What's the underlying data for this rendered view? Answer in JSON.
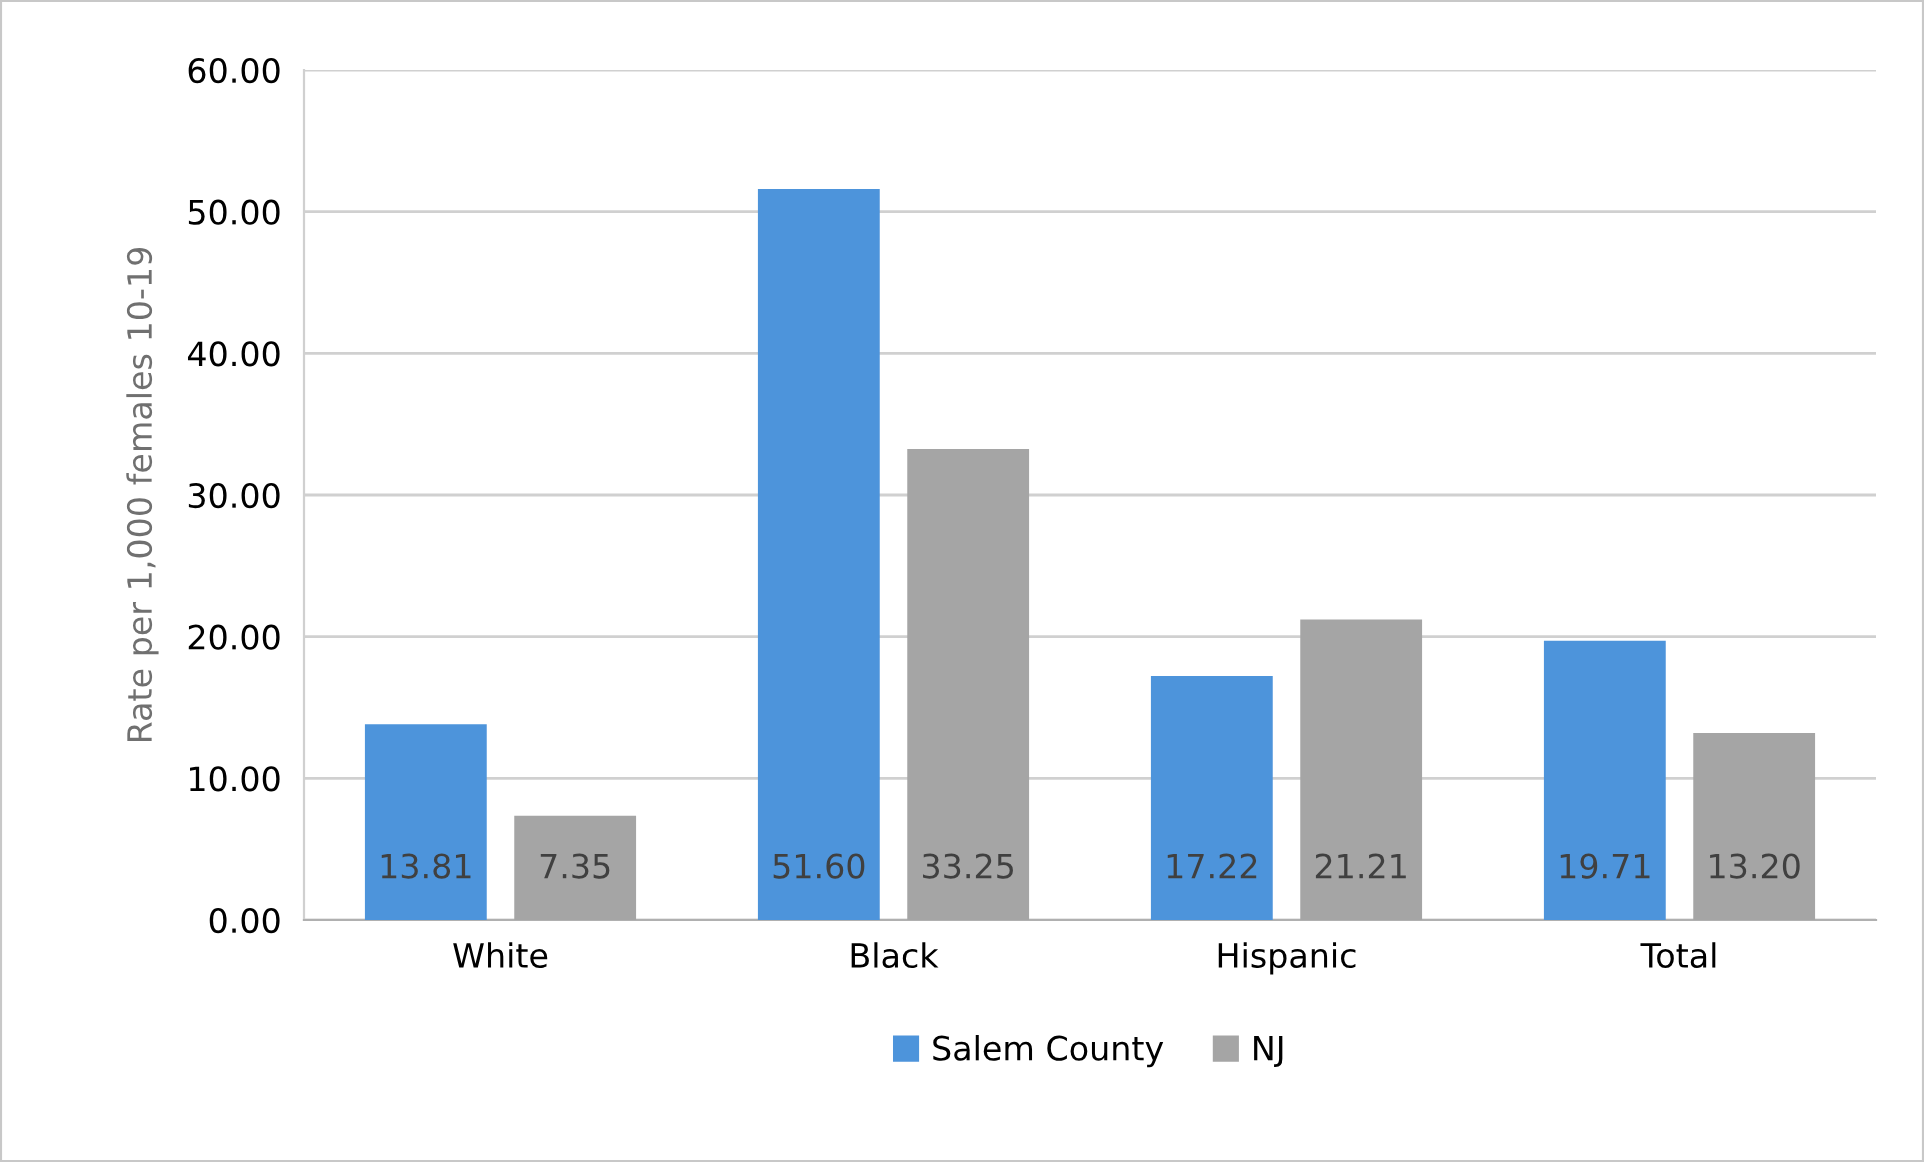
{
  "chart_data": {
    "type": "bar",
    "ylabel": "Rate per 1,000 females 10-19",
    "categories": [
      "White",
      "Black",
      "Hispanic",
      "Total"
    ],
    "series": [
      {
        "name": "Salem County",
        "color": "#4d94db",
        "values": [
          13.81,
          51.6,
          17.22,
          19.71
        ]
      },
      {
        "name": "NJ",
        "color": "#a5a5a5",
        "values": [
          7.35,
          33.25,
          21.21,
          13.2
        ]
      }
    ],
    "ylim": [
      0,
      60
    ],
    "yticks": [
      {
        "value": 0,
        "label": "0.00"
      },
      {
        "value": 10,
        "label": "10.00"
      },
      {
        "value": 20,
        "label": "20.00"
      },
      {
        "value": 30,
        "label": "30.00"
      },
      {
        "value": 40,
        "label": "40.00"
      },
      {
        "value": 50,
        "label": "50.00"
      },
      {
        "value": 60,
        "label": "60.00"
      }
    ],
    "value_labels": [
      [
        "13.81",
        "51.60",
        "17.22",
        "19.71"
      ],
      [
        "7.35",
        "33.25",
        "21.21",
        "13.20"
      ]
    ],
    "grid": "y",
    "legend": "bottom"
  }
}
